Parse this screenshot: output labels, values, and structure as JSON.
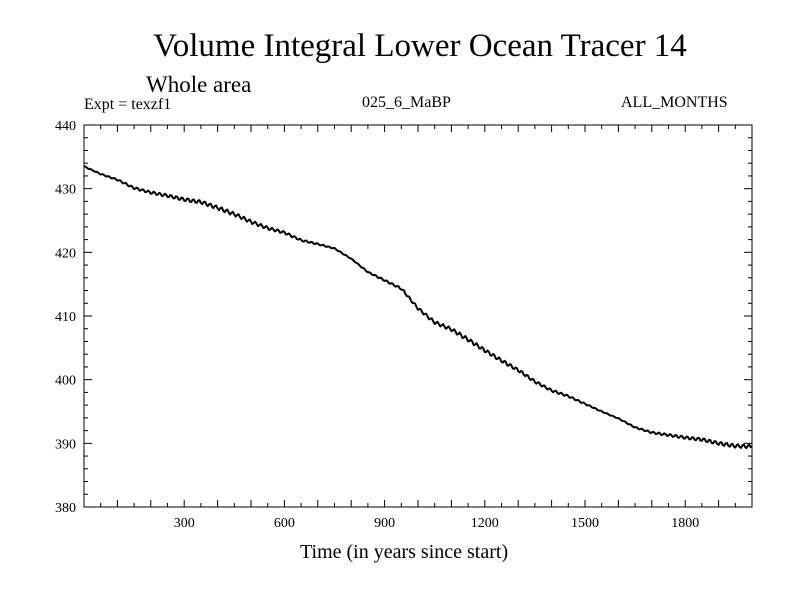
{
  "chart_data": {
    "type": "line",
    "title": "Volume Integral Lower Ocean Tracer 14",
    "subtitle": "Whole area",
    "experiment_label": "Expt = texzf1",
    "experiment_name": "025_6_MaBP",
    "period": "ALL_MONTHS",
    "xlabel": "Time (in years since start)",
    "ylabel": "",
    "xlim": [
      0,
      2000
    ],
    "ylim": [
      380,
      440
    ],
    "xticks": [
      300,
      600,
      900,
      1200,
      1500,
      1800
    ],
    "yticks": [
      380,
      390,
      400,
      410,
      420,
      430,
      440
    ],
    "grid": false,
    "series": [
      {
        "name": "Volume Integral Lower Ocean Tracer 14",
        "color": "#000000",
        "x": [
          0,
          50,
          100,
          150,
          200,
          250,
          300,
          350,
          400,
          450,
          500,
          550,
          600,
          650,
          700,
          750,
          800,
          850,
          900,
          950,
          1000,
          1050,
          1100,
          1150,
          1200,
          1250,
          1300,
          1350,
          1400,
          1450,
          1500,
          1550,
          1600,
          1650,
          1700,
          1750,
          1800,
          1850,
          1900,
          1950,
          2000
        ],
        "y": [
          433.5,
          432.3,
          431.4,
          430.1,
          429.4,
          428.9,
          428.3,
          427.9,
          427.0,
          426.0,
          424.8,
          423.8,
          423.1,
          421.9,
          421.3,
          420.6,
          419.0,
          416.9,
          415.6,
          414.3,
          411.2,
          409.0,
          407.9,
          406.3,
          404.6,
          403.0,
          401.5,
          399.7,
          398.3,
          397.4,
          396.2,
          395.0,
          393.9,
          392.5,
          391.7,
          391.3,
          390.9,
          390.6,
          390.0,
          389.6,
          389.5
        ]
      }
    ]
  }
}
